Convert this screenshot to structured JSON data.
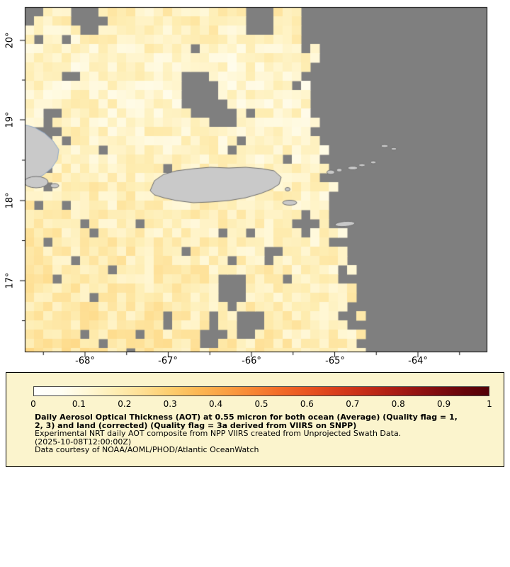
{
  "map": {
    "y_axis": [
      "20°",
      "19°",
      "18°",
      "17°"
    ],
    "x_axis": [
      "-68°",
      "-67°",
      "-66°",
      "-65°",
      "-64°"
    ],
    "colors": {
      "no_data": "#7f7f7f",
      "land": "#c9c9c9",
      "coast": "#6e6e6e",
      "hispaniola_coast": "#8fa8c8",
      "border": "#000000"
    }
  },
  "legend": {
    "bg": "#fbf4cd",
    "ticks": [
      "0",
      "0.1",
      "0.2",
      "0.3",
      "0.4",
      "0.5",
      "0.6",
      "0.7",
      "0.8",
      "0.9",
      "1"
    ],
    "gradient": [
      [
        0.0,
        "#ffffff"
      ],
      [
        0.06,
        "#fffef4"
      ],
      [
        0.12,
        "#fff7d4"
      ],
      [
        0.18,
        "#feedb2"
      ],
      [
        0.24,
        "#fede92"
      ],
      [
        0.3,
        "#fdcd6d"
      ],
      [
        0.36,
        "#fcb753"
      ],
      [
        0.42,
        "#faa043"
      ],
      [
        0.48,
        "#f78634"
      ],
      [
        0.54,
        "#f26b28"
      ],
      [
        0.6,
        "#e95420"
      ],
      [
        0.66,
        "#da3f1c"
      ],
      [
        0.72,
        "#c82e18"
      ],
      [
        0.78,
        "#b01f14"
      ],
      [
        0.84,
        "#951312"
      ],
      [
        0.9,
        "#7a0a0e"
      ],
      [
        0.95,
        "#65040a"
      ],
      [
        1.0,
        "#530007"
      ]
    ],
    "title_line1": "Daily Aerosol Optical Thickness (AOT) at 0.55 micron for both ocean (Average) (Quality flag = 1,",
    "title_line2": "2, 3) and land (corrected) (Quality flag = 3a derived from VIIRS on SNPP)",
    "subtitle": "Experimental NRT daily AOT composite from NPP VIIRS created from Unprojected Swath Data.",
    "timestamp": "(2025-10-08T12:00:00Z)",
    "credit": "Data courtesy of NOAA/AOML/PHOD/Atlantic OceanWatch"
  }
}
